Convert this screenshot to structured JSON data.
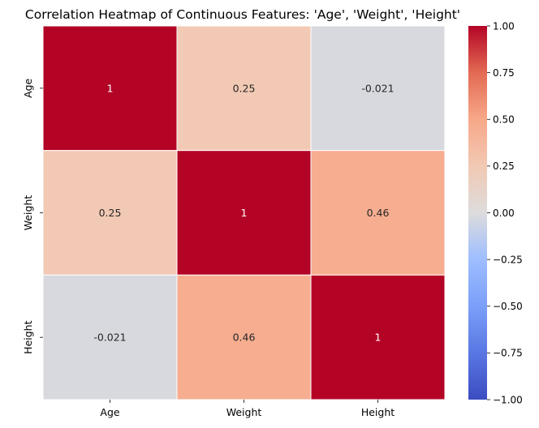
{
  "chart_data": {
    "type": "heatmap",
    "title": "Correlation Heatmap of Continuous Features:  'Age', 'Weight', 'Height'",
    "x_labels": [
      "Age",
      "Weight",
      "Height"
    ],
    "y_labels": [
      "Age",
      "Weight",
      "Height"
    ],
    "values": [
      [
        1,
        0.25,
        -0.021
      ],
      [
        0.25,
        1,
        0.46
      ],
      [
        -0.021,
        0.46,
        1
      ]
    ],
    "annotations": [
      [
        "1",
        "0.25",
        "-0.021"
      ],
      [
        "0.25",
        "1",
        "0.46"
      ],
      [
        "-0.021",
        "0.46",
        "1"
      ]
    ],
    "colormap": "coolwarm",
    "vmin": -1,
    "vmax": 1,
    "colorbar_ticks": [
      "1.00",
      "0.75",
      "0.50",
      "0.25",
      "0.00",
      "−0.25",
      "−0.50",
      "−0.75",
      "−1.00"
    ],
    "cell_gap_color": "#ffffff",
    "annotation_color_dark_bg": "#ffffff",
    "annotation_color_light_bg": "#262626"
  }
}
